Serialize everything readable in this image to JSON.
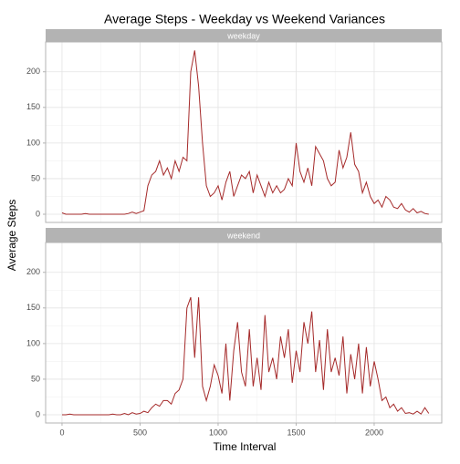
{
  "chart_data": {
    "type": "line",
    "title": "Average Steps - Weekday vs Weekend Variances",
    "xlabel": "Time Interval",
    "ylabel": "Average Steps",
    "color": "#a52a2a",
    "grid": true,
    "x": [
      0,
      25,
      50,
      75,
      100,
      125,
      150,
      175,
      200,
      225,
      250,
      275,
      300,
      325,
      350,
      375,
      400,
      425,
      450,
      475,
      500,
      525,
      550,
      575,
      600,
      625,
      650,
      675,
      700,
      725,
      750,
      775,
      800,
      825,
      850,
      875,
      900,
      925,
      950,
      975,
      1000,
      1025,
      1050,
      1075,
      1100,
      1125,
      1150,
      1175,
      1200,
      1225,
      1250,
      1275,
      1300,
      1325,
      1350,
      1375,
      1400,
      1425,
      1450,
      1475,
      1500,
      1525,
      1550,
      1575,
      1600,
      1625,
      1650,
      1675,
      1700,
      1725,
      1750,
      1775,
      1800,
      1825,
      1850,
      1875,
      1900,
      1925,
      1950,
      1975,
      2000,
      2025,
      2050,
      2075,
      2100,
      2125,
      2150,
      2175,
      2200,
      2225,
      2250,
      2275,
      2300,
      2325,
      2350
    ],
    "xlim": [
      -105,
      2433
    ],
    "xticks": [
      0,
      500,
      1000,
      1500,
      2000
    ],
    "ylim": [
      -11.5,
      241.9
    ],
    "yticks": [
      0,
      50,
      100,
      150,
      200
    ],
    "series": [
      {
        "name": "weekday",
        "values": [
          2,
          0,
          0,
          0,
          0,
          0,
          1,
          0,
          0,
          0,
          0,
          0,
          0,
          0,
          0,
          0,
          0,
          1,
          3,
          1,
          3,
          5,
          40,
          55,
          60,
          75,
          55,
          65,
          50,
          75,
          60,
          80,
          75,
          200,
          230,
          180,
          100,
          40,
          25,
          30,
          40,
          20,
          45,
          60,
          25,
          40,
          55,
          50,
          60,
          30,
          55,
          40,
          25,
          45,
          30,
          40,
          30,
          35,
          50,
          40,
          100,
          60,
          45,
          65,
          40,
          95,
          85,
          75,
          50,
          40,
          45,
          90,
          65,
          80,
          115,
          70,
          60,
          30,
          45,
          25,
          15,
          20,
          10,
          25,
          20,
          10,
          8,
          15,
          6,
          3,
          8,
          2,
          4,
          1,
          0
        ]
      },
      {
        "name": "weekend",
        "values": [
          0,
          0,
          1,
          0,
          0,
          0,
          0,
          0,
          0,
          0,
          0,
          0,
          0,
          1,
          0,
          0,
          2,
          0,
          3,
          1,
          2,
          5,
          3,
          10,
          15,
          12,
          20,
          20,
          15,
          30,
          35,
          50,
          150,
          165,
          80,
          165,
          40,
          20,
          40,
          70,
          55,
          30,
          100,
          20,
          90,
          130,
          60,
          40,
          120,
          40,
          80,
          35,
          140,
          60,
          80,
          50,
          110,
          80,
          120,
          45,
          90,
          60,
          130,
          100,
          145,
          60,
          105,
          35,
          120,
          60,
          80,
          55,
          110,
          30,
          85,
          50,
          100,
          30,
          95,
          40,
          75,
          50,
          20,
          25,
          10,
          15,
          5,
          10,
          2,
          3,
          1,
          5,
          1,
          10,
          2
        ]
      }
    ]
  }
}
